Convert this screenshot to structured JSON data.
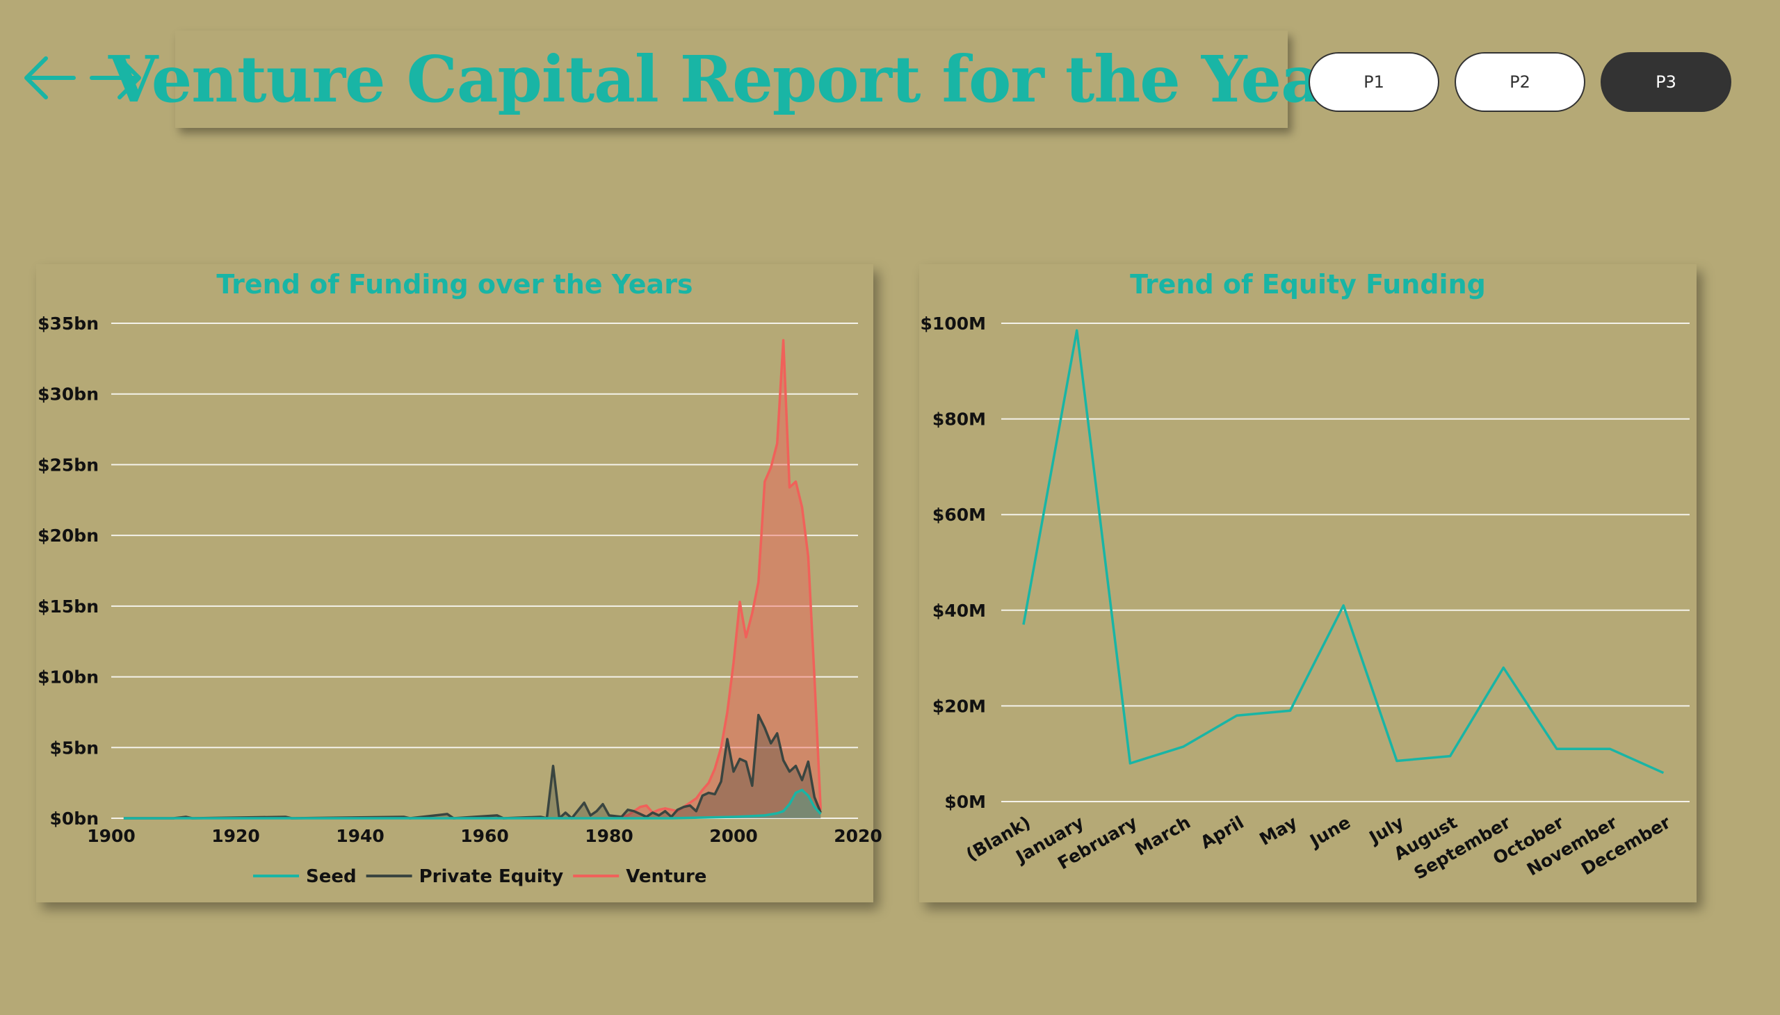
{
  "header": {
    "title": "Venture Capital Report for the Year",
    "nav": {
      "back_icon": "arrow-left-icon",
      "forward_icon": "arrow-right-icon"
    },
    "pages": [
      {
        "label": "P1",
        "active": false
      },
      {
        "label": "P2",
        "active": false
      },
      {
        "label": "P3",
        "active": true
      }
    ]
  },
  "colors": {
    "background": "#b5a976",
    "accent": "#19b5a5",
    "seed": "#19b5a5",
    "private_equity": "#3a4540",
    "venture": "#f0615a"
  },
  "chart_data": [
    {
      "type": "area",
      "title": "Trend of Funding over the Years",
      "xlabel": "",
      "ylabel": "",
      "xlim": [
        1900,
        2020
      ],
      "ylim": [
        0,
        35
      ],
      "x_ticks": [
        "1900",
        "1920",
        "1940",
        "1960",
        "1980",
        "2000",
        "2020"
      ],
      "y_ticks": [
        "$0bn",
        "$5bn",
        "$10bn",
        "$15bn",
        "$20bn",
        "$25bn",
        "$30bn",
        "$35bn"
      ],
      "grid": true,
      "legend": "bottom-center",
      "series": [
        {
          "name": "Seed",
          "color": "#19b5a5",
          "points": [
            [
              1902,
              0
            ],
            [
              1990,
              0
            ],
            [
              1995,
              0.05
            ],
            [
              2000,
              0.1
            ],
            [
              2003,
              0.15
            ],
            [
              2005,
              0.2
            ],
            [
              2007,
              0.35
            ],
            [
              2008,
              0.5
            ],
            [
              2009,
              1.0
            ],
            [
              2010,
              1.8
            ],
            [
              2011,
              2.0
            ],
            [
              2012,
              1.6
            ],
            [
              2013,
              0.8
            ],
            [
              2014,
              0.3
            ]
          ]
        },
        {
          "name": "Private Equity",
          "color": "#3a4540",
          "points": [
            [
              1902,
              0
            ],
            [
              1910,
              0
            ],
            [
              1912,
              0.1
            ],
            [
              1913,
              0
            ],
            [
              1928,
              0.1
            ],
            [
              1929,
              0
            ],
            [
              1947,
              0.1
            ],
            [
              1948,
              0
            ],
            [
              1954,
              0.3
            ],
            [
              1955,
              0
            ],
            [
              1962,
              0.2
            ],
            [
              1963,
              0
            ],
            [
              1969,
              0.1
            ],
            [
              1970,
              0
            ],
            [
              1971,
              3.7
            ],
            [
              1972,
              0
            ],
            [
              1973,
              0.4
            ],
            [
              1974,
              0
            ],
            [
              1976,
              1.1
            ],
            [
              1977,
              0.2
            ],
            [
              1978,
              0.5
            ],
            [
              1979,
              1.0
            ],
            [
              1980,
              0.2
            ],
            [
              1982,
              0.1
            ],
            [
              1983,
              0.6
            ],
            [
              1984,
              0.5
            ],
            [
              1985,
              0.3
            ],
            [
              1986,
              0.1
            ],
            [
              1987,
              0.4
            ],
            [
              1988,
              0.2
            ],
            [
              1989,
              0.5
            ],
            [
              1990,
              0.1
            ],
            [
              1991,
              0.6
            ],
            [
              1992,
              0.8
            ],
            [
              1993,
              0.9
            ],
            [
              1994,
              0.5
            ],
            [
              1995,
              1.6
            ],
            [
              1996,
              1.8
            ],
            [
              1997,
              1.7
            ],
            [
              1998,
              2.6
            ],
            [
              1999,
              5.6
            ],
            [
              2000,
              3.3
            ],
            [
              2001,
              4.2
            ],
            [
              2002,
              4.0
            ],
            [
              2003,
              2.3
            ],
            [
              2004,
              7.3
            ],
            [
              2005,
              6.4
            ],
            [
              2006,
              5.3
            ],
            [
              2007,
              6.0
            ],
            [
              2008,
              4.1
            ],
            [
              2009,
              3.3
            ],
            [
              2010,
              3.7
            ],
            [
              2011,
              2.7
            ],
            [
              2012,
              4.0
            ],
            [
              2013,
              1.5
            ],
            [
              2014,
              0.4
            ]
          ]
        },
        {
          "name": "Venture",
          "color": "#f0615a",
          "points": [
            [
              1902,
              0
            ],
            [
              1980,
              0
            ],
            [
              1983,
              0.2
            ],
            [
              1985,
              0.8
            ],
            [
              1986,
              0.9
            ],
            [
              1987,
              0.4
            ],
            [
              1988,
              0.6
            ],
            [
              1989,
              0.7
            ],
            [
              1990,
              0.6
            ],
            [
              1991,
              0.5
            ],
            [
              1992,
              0.8
            ],
            [
              1993,
              1.1
            ],
            [
              1994,
              1.4
            ],
            [
              1995,
              2.0
            ],
            [
              1996,
              2.5
            ],
            [
              1997,
              3.5
            ],
            [
              1998,
              5.0
            ],
            [
              1999,
              7.5
            ],
            [
              2000,
              11.0
            ],
            [
              2001,
              15.3
            ],
            [
              2002,
              12.8
            ],
            [
              2003,
              14.5
            ],
            [
              2004,
              16.7
            ],
            [
              2005,
              23.8
            ],
            [
              2006,
              24.8
            ],
            [
              2007,
              26.5
            ],
            [
              2008,
              33.8
            ],
            [
              2009,
              23.4
            ],
            [
              2010,
              23.8
            ],
            [
              2011,
              22.0
            ],
            [
              2012,
              18.5
            ],
            [
              2013,
              10.0
            ],
            [
              2014,
              0.6
            ]
          ]
        }
      ]
    },
    {
      "type": "line",
      "title": "Trend of Equity Funding",
      "xlabel": "",
      "ylabel": "",
      "ylim": [
        0,
        100
      ],
      "y_ticks": [
        "$0M",
        "$20M",
        "$40M",
        "$60M",
        "$80M",
        "$100M"
      ],
      "grid": true,
      "categories": [
        "(Blank)",
        "January",
        "February",
        "March",
        "April",
        "May",
        "June",
        "July",
        "August",
        "September",
        "October",
        "November",
        "December"
      ],
      "series": [
        {
          "color": "#19b5a5",
          "values": [
            37,
            98.5,
            8,
            11.5,
            18,
            19,
            41,
            8.5,
            9.5,
            28,
            11,
            11,
            6
          ]
        }
      ]
    }
  ]
}
